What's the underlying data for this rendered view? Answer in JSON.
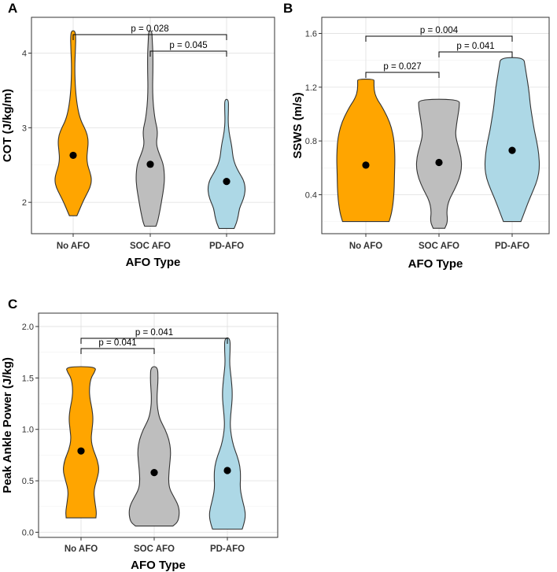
{
  "chart_data": [
    {
      "type": "violin",
      "panel": "A",
      "xlabel": "AFO Type",
      "ylabel": "COT (J/kg/m)",
      "ylim": [
        1.58,
        4.48
      ],
      "yticks": [
        2,
        3,
        4
      ],
      "ytick_labels": [
        "2",
        "3",
        "4"
      ],
      "categories": [
        "No AFO",
        "SOC AFO",
        "PD-AFO"
      ],
      "colors": [
        "#FFA500",
        "#BEBEBE",
        "#ADD8E6"
      ],
      "means": [
        2.63,
        2.51,
        2.28
      ],
      "violins": [
        {
          "category": "No AFO",
          "min": 1.82,
          "max": 4.3,
          "profile": [
            [
              1.82,
              0.2
            ],
            [
              1.88,
              0.3
            ],
            [
              2.0,
              0.5
            ],
            [
              2.1,
              0.7
            ],
            [
              2.2,
              0.9
            ],
            [
              2.3,
              0.98
            ],
            [
              2.4,
              0.9
            ],
            [
              2.5,
              0.76
            ],
            [
              2.6,
              0.72
            ],
            [
              2.7,
              0.76
            ],
            [
              2.8,
              0.8
            ],
            [
              2.9,
              0.76
            ],
            [
              3.0,
              0.6
            ],
            [
              3.1,
              0.4
            ],
            [
              3.25,
              0.24
            ],
            [
              3.5,
              0.12
            ],
            [
              3.8,
              0.08
            ],
            [
              4.05,
              0.12
            ],
            [
              4.2,
              0.14
            ],
            [
              4.3,
              0.1
            ]
          ]
        },
        {
          "category": "SOC AFO",
          "min": 1.68,
          "max": 4.3,
          "profile": [
            [
              1.68,
              0.3
            ],
            [
              1.75,
              0.4
            ],
            [
              1.9,
              0.52
            ],
            [
              2.05,
              0.62
            ],
            [
              2.2,
              0.72
            ],
            [
              2.35,
              0.76
            ],
            [
              2.5,
              0.7
            ],
            [
              2.6,
              0.56
            ],
            [
              2.7,
              0.4
            ],
            [
              2.8,
              0.32
            ],
            [
              2.9,
              0.38
            ],
            [
              3.0,
              0.36
            ],
            [
              3.1,
              0.26
            ],
            [
              3.3,
              0.16
            ],
            [
              3.5,
              0.12
            ],
            [
              3.75,
              0.14
            ],
            [
              4.0,
              0.14
            ],
            [
              4.2,
              0.1
            ],
            [
              4.3,
              0.08
            ]
          ]
        },
        {
          "category": "PD-AFO",
          "min": 1.65,
          "max": 3.38,
          "profile": [
            [
              1.65,
              0.4
            ],
            [
              1.72,
              0.52
            ],
            [
              1.82,
              0.62
            ],
            [
              1.92,
              0.68
            ],
            [
              2.0,
              0.82
            ],
            [
              2.1,
              0.96
            ],
            [
              2.2,
              0.99
            ],
            [
              2.3,
              0.9
            ],
            [
              2.4,
              0.66
            ],
            [
              2.5,
              0.46
            ],
            [
              2.6,
              0.34
            ],
            [
              2.7,
              0.3
            ],
            [
              2.8,
              0.24
            ],
            [
              2.95,
              0.12
            ],
            [
              3.1,
              0.08
            ],
            [
              3.25,
              0.1
            ],
            [
              3.38,
              0.1
            ]
          ]
        }
      ],
      "comparisons": [
        {
          "from": "No AFO",
          "to": "PD-AFO",
          "label": "p = 0.028"
        },
        {
          "from": "SOC AFO",
          "to": "PD-AFO",
          "label": "p = 0.045"
        }
      ]
    },
    {
      "type": "violin",
      "panel": "B",
      "xlabel": "AFO Type",
      "ylabel": "SSWS (m/s)",
      "ylim": [
        0.11,
        1.72
      ],
      "yticks": [
        0.4,
        0.8,
        1.2,
        1.6
      ],
      "ytick_labels": [
        "0.4",
        "0.8",
        "1.2",
        "1.6"
      ],
      "categories": [
        "No AFO",
        "SOC AFO",
        "PD-AFO"
      ],
      "colors": [
        "#FFA500",
        "#BEBEBE",
        "#ADD8E6"
      ],
      "means": [
        0.62,
        0.64,
        0.73
      ],
      "violins": [
        {
          "category": "No AFO",
          "min": 0.2,
          "max": 1.26,
          "profile": [
            [
              0.2,
              0.8
            ],
            [
              0.26,
              0.88
            ],
            [
              0.34,
              0.94
            ],
            [
              0.42,
              0.97
            ],
            [
              0.5,
              0.98
            ],
            [
              0.58,
              0.99
            ],
            [
              0.66,
              1.0
            ],
            [
              0.74,
              0.99
            ],
            [
              0.82,
              0.96
            ],
            [
              0.9,
              0.88
            ],
            [
              0.98,
              0.74
            ],
            [
              1.06,
              0.54
            ],
            [
              1.12,
              0.36
            ],
            [
              1.18,
              0.28
            ],
            [
              1.24,
              0.28
            ],
            [
              1.26,
              0.28
            ]
          ]
        },
        {
          "category": "SOC AFO",
          "min": 0.15,
          "max": 1.11,
          "profile": [
            [
              0.15,
              0.2
            ],
            [
              0.2,
              0.3
            ],
            [
              0.28,
              0.26
            ],
            [
              0.36,
              0.34
            ],
            [
              0.44,
              0.54
            ],
            [
              0.52,
              0.7
            ],
            [
              0.6,
              0.78
            ],
            [
              0.68,
              0.76
            ],
            [
              0.76,
              0.66
            ],
            [
              0.84,
              0.56
            ],
            [
              0.92,
              0.6
            ],
            [
              1.0,
              0.66
            ],
            [
              1.06,
              0.7
            ],
            [
              1.11,
              0.7
            ]
          ]
        },
        {
          "category": "PD-AFO",
          "min": 0.2,
          "max": 1.42,
          "profile": [
            [
              0.2,
              0.3
            ],
            [
              0.28,
              0.44
            ],
            [
              0.36,
              0.58
            ],
            [
              0.44,
              0.74
            ],
            [
              0.52,
              0.88
            ],
            [
              0.6,
              0.94
            ],
            [
              0.7,
              0.92
            ],
            [
              0.8,
              0.84
            ],
            [
              0.88,
              0.76
            ],
            [
              0.96,
              0.7
            ],
            [
              1.04,
              0.64
            ],
            [
              1.12,
              0.6
            ],
            [
              1.2,
              0.56
            ],
            [
              1.28,
              0.5
            ],
            [
              1.36,
              0.44
            ],
            [
              1.42,
              0.4
            ]
          ]
        }
      ],
      "comparisons": [
        {
          "from": "No AFO",
          "to": "SOC AFO",
          "label": "p = 0.027"
        },
        {
          "from": "SOC AFO",
          "to": "PD-AFO",
          "label": "p = 0.041"
        },
        {
          "from": "No AFO",
          "to": "PD-AFO",
          "label": "p = 0.004"
        }
      ]
    },
    {
      "type": "violin",
      "panel": "C",
      "xlabel": "AFO Type",
      "ylabel": "Peak Ankle Power (J/kg)",
      "ylim": [
        -0.05,
        2.13
      ],
      "yticks": [
        0.0,
        0.5,
        1.0,
        1.5,
        2.0
      ],
      "ytick_labels": [
        "0.0",
        "0.5",
        "1.0",
        "1.5",
        "2.0"
      ],
      "categories": [
        "No AFO",
        "SOC AFO",
        "PD-AFO"
      ],
      "colors": [
        "#FFA500",
        "#BEBEBE",
        "#ADD8E6"
      ],
      "means": [
        0.79,
        0.58,
        0.6
      ],
      "violins": [
        {
          "category": "No AFO",
          "min": 0.14,
          "max": 1.61,
          "profile": [
            [
              0.14,
              0.54
            ],
            [
              0.2,
              0.56
            ],
            [
              0.3,
              0.5
            ],
            [
              0.4,
              0.46
            ],
            [
              0.5,
              0.56
            ],
            [
              0.6,
              0.66
            ],
            [
              0.7,
              0.6
            ],
            [
              0.8,
              0.44
            ],
            [
              0.9,
              0.36
            ],
            [
              1.0,
              0.4
            ],
            [
              1.1,
              0.44
            ],
            [
              1.2,
              0.4
            ],
            [
              1.3,
              0.32
            ],
            [
              1.4,
              0.3
            ],
            [
              1.5,
              0.36
            ],
            [
              1.55,
              0.48
            ],
            [
              1.61,
              0.56
            ]
          ]
        },
        {
          "category": "SOC AFO",
          "min": 0.06,
          "max": 1.61,
          "profile": [
            [
              0.06,
              0.68
            ],
            [
              0.1,
              0.86
            ],
            [
              0.18,
              0.92
            ],
            [
              0.26,
              0.88
            ],
            [
              0.34,
              0.72
            ],
            [
              0.42,
              0.56
            ],
            [
              0.5,
              0.52
            ],
            [
              0.6,
              0.54
            ],
            [
              0.7,
              0.58
            ],
            [
              0.8,
              0.6
            ],
            [
              0.9,
              0.54
            ],
            [
              1.0,
              0.4
            ],
            [
              1.1,
              0.2
            ],
            [
              1.2,
              0.12
            ],
            [
              1.3,
              0.1
            ],
            [
              1.4,
              0.12
            ],
            [
              1.5,
              0.14
            ],
            [
              1.61,
              0.12
            ]
          ]
        },
        {
          "category": "PD-AFO",
          "min": 0.03,
          "max": 1.89,
          "profile": [
            [
              0.03,
              0.54
            ],
            [
              0.08,
              0.6
            ],
            [
              0.16,
              0.66
            ],
            [
              0.24,
              0.62
            ],
            [
              0.34,
              0.52
            ],
            [
              0.44,
              0.46
            ],
            [
              0.54,
              0.48
            ],
            [
              0.64,
              0.46
            ],
            [
              0.74,
              0.36
            ],
            [
              0.84,
              0.22
            ],
            [
              0.94,
              0.14
            ],
            [
              1.04,
              0.1
            ],
            [
              1.14,
              0.12
            ],
            [
              1.24,
              0.16
            ],
            [
              1.34,
              0.18
            ],
            [
              1.44,
              0.16
            ],
            [
              1.54,
              0.12
            ],
            [
              1.64,
              0.08
            ],
            [
              1.76,
              0.1
            ],
            [
              1.89,
              0.1
            ]
          ]
        }
      ],
      "comparisons": [
        {
          "from": "No AFO",
          "to": "SOC AFO",
          "label": "p = 0.041"
        },
        {
          "from": "No AFO",
          "to": "PD-AFO",
          "label": "p = 0.041"
        }
      ]
    }
  ]
}
